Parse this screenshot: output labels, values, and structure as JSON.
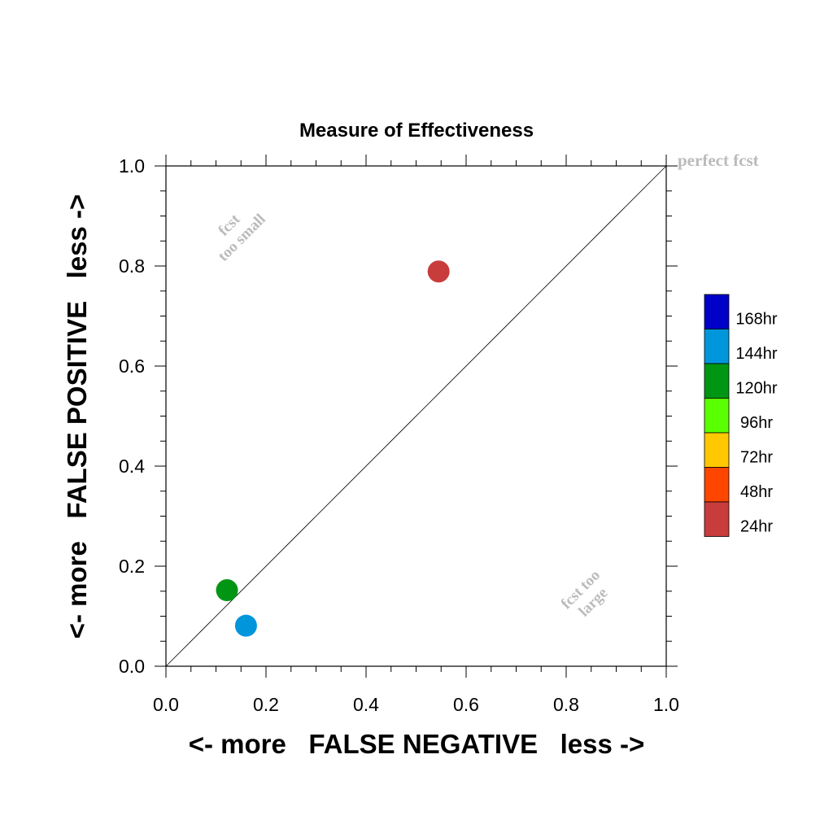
{
  "chart_data": {
    "type": "scatter",
    "title": "Measure of Effectiveness",
    "xlabel": "<- more   FALSE NEGATIVE   less ->",
    "ylabel": "<- more   FALSE POSITIVE   less ->",
    "xlim": [
      0.0,
      1.0
    ],
    "ylim": [
      0.0,
      1.0
    ],
    "x_tick_labels": [
      "0.0",
      "0.2",
      "0.4",
      "0.6",
      "0.8",
      "1.0"
    ],
    "y_tick_labels": [
      "0.0",
      "0.2",
      "0.4",
      "0.6",
      "0.8",
      "1.0"
    ],
    "grid": false,
    "diagonal_line": true,
    "annotations": {
      "perfect": "perfect fcst",
      "small_line1": "fcst",
      "small_line2": "too small",
      "large_line1": "fcst too",
      "large_line2": "large"
    },
    "legend": {
      "placement": "right",
      "entries": [
        {
          "label": "168hr",
          "color": "#0000c8"
        },
        {
          "label": "144hr",
          "color": "#0096dc"
        },
        {
          "label": "120hr",
          "color": "#009614"
        },
        {
          "label": "96hr",
          "color": "#5aff00"
        },
        {
          "label": "72hr",
          "color": "#ffc800"
        },
        {
          "label": "48hr",
          "color": "#ff4600"
        },
        {
          "label": "24hr",
          "color": "#c83c3c"
        }
      ]
    },
    "points": [
      {
        "series": "24hr",
        "x": 0.545,
        "y": 0.789,
        "color": "#c83c3c"
      },
      {
        "series": "120hr",
        "x": 0.122,
        "y": 0.152,
        "color": "#009614"
      },
      {
        "series": "144hr",
        "x": 0.16,
        "y": 0.081,
        "color": "#0096dc"
      }
    ]
  }
}
